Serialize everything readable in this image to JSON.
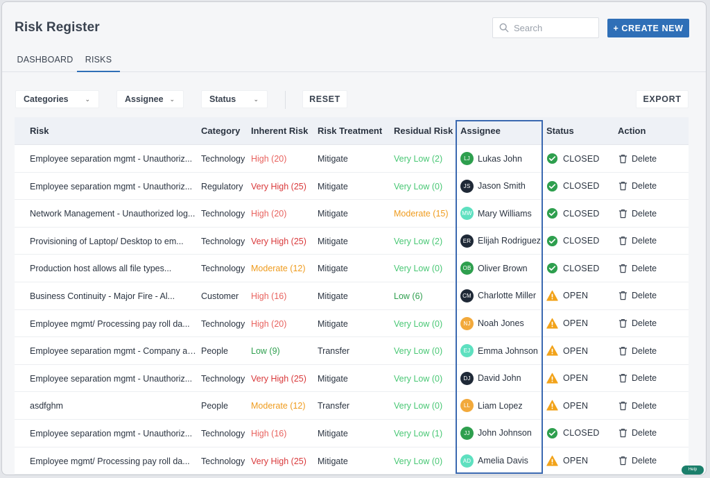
{
  "page": {
    "title": "Risk Register"
  },
  "search": {
    "placeholder": "Search"
  },
  "create_label": "+ CREATE NEW",
  "tabs": [
    {
      "label": "DASHBOARD"
    },
    {
      "label": "RISKS"
    }
  ],
  "filters": {
    "categories": "Categories",
    "assignee": "Assignee",
    "status": "Status",
    "reset": "RESET",
    "export": "EXPORT"
  },
  "columns": {
    "risk": "Risk",
    "category": "Category",
    "inherent": "Inherent Risk",
    "treatment": "Risk Treatment",
    "residual": "Residual Risk",
    "assignee": "Assignee",
    "status": "Status",
    "action": "Action"
  },
  "action_label": "Delete",
  "help_label": "Help",
  "level_colors": {
    "High": "#e8625e",
    "Very High": "#d9383a",
    "Moderate": "#ef9b1d",
    "Very Low": "#48c774",
    "Low": "#2e9f4e"
  },
  "rows": [
    {
      "risk": "Employee separation mgmt - Unauthoriz...",
      "category": "Technology",
      "inherent": "High (20)",
      "treatment": "Mitigate",
      "residual": "Very Low (2)",
      "initials": "LJ",
      "assignee": "Lukas John",
      "avatar_color": "#2e9f4e",
      "status": "CLOSED",
      "status_icon": "check-circle-icon"
    },
    {
      "risk": "Employee separation mgmt - Unauthoriz...",
      "category": "Regulatory",
      "inherent": "Very High (25)",
      "treatment": "Mitigate",
      "residual": "Very Low (0)",
      "initials": "JS",
      "assignee": "Jason Smith",
      "avatar_color": "#1f2937",
      "status": "CLOSED",
      "status_icon": "check-circle-icon"
    },
    {
      "risk": "Network Management - Unauthorized log...",
      "category": "Technology",
      "inherent": "High (20)",
      "treatment": "Mitigate",
      "residual": "Moderate (15)",
      "initials": "MW",
      "assignee": "Mary Williams",
      "avatar_color": "#5ee0c0",
      "status": "CLOSED",
      "status_icon": "check-circle-icon"
    },
    {
      "risk": "Provisioning of Laptop/ Desktop to em...",
      "category": "Technology",
      "inherent": "Very High (25)",
      "treatment": "Mitigate",
      "residual": "Very Low (2)",
      "initials": "ER",
      "assignee": "Elijah Rodriguez",
      "avatar_color": "#1f2937",
      "status": "CLOSED",
      "status_icon": "check-circle-icon"
    },
    {
      "risk": "Production host allows all file types...",
      "category": "Technology",
      "inherent": "Moderate (12)",
      "treatment": "Mitigate",
      "residual": "Very Low (0)",
      "initials": "OB",
      "assignee": "Oliver Brown",
      "avatar_color": "#2e9f4e",
      "status": "CLOSED",
      "status_icon": "check-circle-icon"
    },
    {
      "risk": "Business Continuity - Major Fire - Al...",
      "category": "Customer",
      "inherent": "High (16)",
      "treatment": "Mitigate",
      "residual": "Low (6)",
      "initials": "CM",
      "assignee": "Charlotte Miller",
      "avatar_color": "#1f2937",
      "status": "OPEN",
      "status_icon": "warning-icon"
    },
    {
      "risk": "Employee mgmt/ Processing pay roll da...",
      "category": "Technology",
      "inherent": "High (20)",
      "treatment": "Mitigate",
      "residual": "Very Low (0)",
      "initials": "NJ",
      "assignee": "Noah Jones",
      "avatar_color": "#f2a93b",
      "status": "OPEN",
      "status_icon": "warning-icon"
    },
    {
      "risk": "Employee separation mgmt - Company as...",
      "category": "People",
      "inherent": "Low (9)",
      "treatment": "Transfer",
      "residual": "Very Low (0)",
      "initials": "EJ",
      "assignee": "Emma Johnson",
      "avatar_color": "#5ee0c0",
      "status": "OPEN",
      "status_icon": "warning-icon"
    },
    {
      "risk": "Employee separation mgmt - Unauthoriz...",
      "category": "Technology",
      "inherent": "Very High (25)",
      "treatment": "Mitigate",
      "residual": "Very Low (0)",
      "initials": "DJ",
      "assignee": "David John",
      "avatar_color": "#1f2937",
      "status": "OPEN",
      "status_icon": "warning-icon"
    },
    {
      "risk": "asdfghm",
      "category": "People",
      "inherent": "Moderate (12)",
      "treatment": "Transfer",
      "residual": "Very Low (0)",
      "initials": "LL",
      "assignee": "Liam Lopez",
      "avatar_color": "#f2a93b",
      "status": "OPEN",
      "status_icon": "warning-icon"
    },
    {
      "risk": "Employee separation mgmt - Unauthoriz...",
      "category": "Technology",
      "inherent": "High (16)",
      "treatment": "Mitigate",
      "residual": "Very Low (1)",
      "initials": "JJ",
      "assignee": "John Johnson",
      "avatar_color": "#2e9f4e",
      "status": "CLOSED",
      "status_icon": "check-circle-icon"
    },
    {
      "risk": "Employee mgmt/ Processing pay roll da...",
      "category": "Technology",
      "inherent": "Very High (25)",
      "treatment": "Mitigate",
      "residual": "Very Low (0)",
      "initials": "AD",
      "assignee": "Amelia Davis",
      "avatar_color": "#5ee0c0",
      "status": "OPEN",
      "status_icon": "warning-icon"
    }
  ]
}
